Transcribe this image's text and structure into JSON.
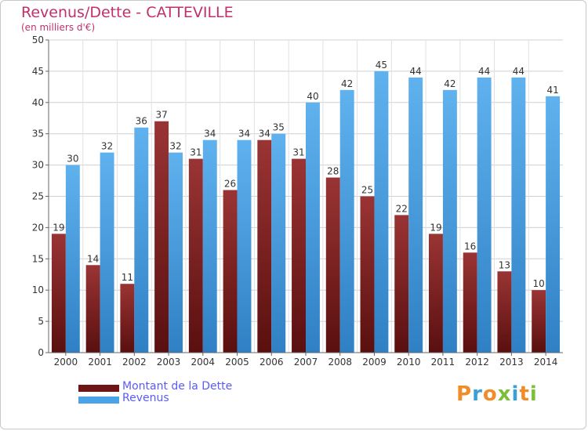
{
  "chart_data": {
    "type": "bar",
    "title": "Revenus/Dette - CATTEVILLE",
    "subtitle": "(en milliers d'€)",
    "categories": [
      "2000",
      "2001",
      "2002",
      "2003",
      "2004",
      "2005",
      "2006",
      "2007",
      "2008",
      "2009",
      "2010",
      "2011",
      "2012",
      "2013",
      "2014"
    ],
    "series": [
      {
        "name": "Montant de la Dette",
        "values": [
          19,
          14,
          11,
          37,
          31,
          26,
          34,
          31,
          28,
          25,
          22,
          19,
          16,
          13,
          10
        ],
        "color": "#8b2a2a"
      },
      {
        "name": "Revenus",
        "values": [
          30,
          32,
          36,
          32,
          34,
          34,
          35,
          40,
          42,
          45,
          44,
          42,
          44,
          44,
          41
        ],
        "color": "#4aa3e6"
      }
    ],
    "ylim": [
      0,
      50
    ],
    "yticks": [
      0,
      5,
      10,
      15,
      20,
      25,
      30,
      35,
      40,
      45,
      50
    ],
    "grid": true,
    "legend_position": "bottom-left"
  },
  "logo": {
    "text": "Proxiti",
    "letters": [
      {
        "ch": "P",
        "color": "#f28c28"
      },
      {
        "ch": "r",
        "color": "#3aa0d8"
      },
      {
        "ch": "o",
        "color": "#f28c28"
      },
      {
        "ch": "x",
        "color": "#7cbf3a"
      },
      {
        "ch": "i",
        "color": "#3aa0d8"
      },
      {
        "ch": "t",
        "color": "#f28c28"
      },
      {
        "ch": "i",
        "color": "#7cbf3a"
      }
    ]
  }
}
